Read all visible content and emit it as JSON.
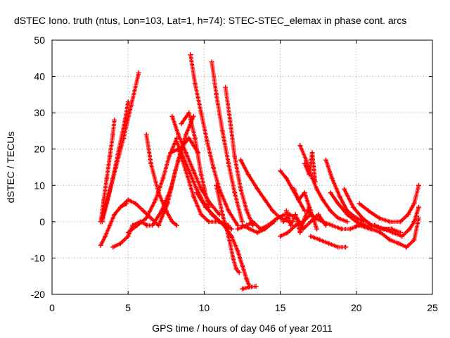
{
  "chart_data": {
    "type": "scatter",
    "title": "dSTEC Iono. truth (ntus, Lon=103, Lat=1, h=74): STEC-STEC_elemax in phase cont. arcs",
    "xlabel": "GPS time / hours of day 046 of year 2011",
    "ylabel": "dSTEC  / TECUs",
    "xlim": [
      0,
      25
    ],
    "ylim": [
      -20,
      50
    ],
    "xticks": [
      0,
      5,
      10,
      15,
      20,
      25
    ],
    "yticks": [
      -20,
      -10,
      0,
      10,
      20,
      30,
      40,
      50
    ],
    "grid": true,
    "marker": "+",
    "color": "#ff0000",
    "series": [
      {
        "x": [
          3.2,
          3.4,
          3.6,
          3.8,
          4.0,
          4.1
        ],
        "y": [
          0,
          6,
          12,
          18,
          24,
          28
        ]
      },
      {
        "x": [
          3.3,
          3.6,
          4.0,
          4.4,
          4.8,
          5.0
        ],
        "y": [
          0,
          5,
          12,
          20,
          28,
          33
        ]
      },
      {
        "x": [
          3.3,
          3.7,
          4.2,
          4.7,
          5.2,
          5.7
        ],
        "y": [
          1,
          7,
          15,
          23,
          32,
          41
        ]
      },
      {
        "x": [
          3.2,
          3.5,
          3.8,
          4.1,
          4.5,
          4.9
        ],
        "y": [
          -6.5,
          -4,
          -1,
          2,
          4,
          5
        ]
      },
      {
        "x": [
          4.0,
          4.5,
          5.0,
          5.3,
          5.8,
          6.3
        ],
        "y": [
          -7,
          -6,
          -4,
          -1,
          0,
          -1
        ]
      },
      {
        "x": [
          4.5,
          5.0,
          5.5,
          6.0,
          6.5,
          7.0
        ],
        "y": [
          4,
          6,
          5,
          3,
          1,
          -1
        ]
      },
      {
        "x": [
          5.0,
          5.6,
          6.2,
          6.8,
          7.3,
          7.7,
          8.2
        ],
        "y": [
          -3,
          -1,
          1,
          6,
          12,
          18,
          23
        ]
      },
      {
        "x": [
          6.2,
          6.6,
          7.2,
          7.8,
          8.3,
          8.8,
          9.3
        ],
        "y": [
          -1,
          -1,
          3,
          9,
          17,
          24,
          29
        ]
      },
      {
        "x": [
          6.2,
          6.5,
          7.0,
          7.5,
          7.9,
          8.2
        ],
        "y": [
          24,
          16,
          8,
          3,
          0,
          -1
        ]
      },
      {
        "x": [
          7.0,
          7.6,
          8.1,
          8.6,
          9.0,
          9.6
        ],
        "y": [
          -1,
          5,
          14,
          21,
          23,
          19
        ]
      },
      {
        "x": [
          7.9,
          8.3,
          8.8,
          9.3,
          9.8,
          10.4,
          11.0
        ],
        "y": [
          29,
          24,
          19,
          14,
          9,
          5,
          2
        ]
      },
      {
        "x": [
          8.2,
          8.6,
          9.0,
          9.5,
          10.0,
          10.5,
          11.0,
          11.8
        ],
        "y": [
          22,
          18,
          14,
          9,
          5,
          2,
          0,
          -2
        ]
      },
      {
        "x": [
          8.5,
          9.0,
          9.4,
          9.8,
          10.3
        ],
        "y": [
          27,
          30,
          23,
          13,
          4
        ]
      },
      {
        "x": [
          7.8,
          8.3,
          8.8,
          9.3,
          9.8,
          10.3,
          11.0,
          11.6
        ],
        "y": [
          19,
          20,
          14,
          7,
          2,
          0,
          0,
          -1
        ]
      },
      {
        "x": [
          9.1,
          9.4,
          9.8,
          10.2,
          10.6,
          11.0,
          11.6,
          12.2
        ],
        "y": [
          46,
          38,
          30,
          22,
          15,
          9,
          3,
          -1
        ]
      },
      {
        "x": [
          10.5,
          10.8,
          11.2,
          11.6,
          12.0,
          12.5
        ],
        "y": [
          44,
          35,
          25,
          16,
          8,
          0
        ]
      },
      {
        "x": [
          11.4,
          11.7,
          12.0,
          12.4,
          12.8,
          13.2
        ],
        "y": [
          37,
          28,
          18,
          9,
          3,
          -1
        ]
      },
      {
        "x": [
          10.8,
          11.2,
          11.6,
          11.9,
          12.1,
          12.3
        ],
        "y": [
          10,
          2,
          -4,
          -10,
          -13,
          -14
        ]
      },
      {
        "x": [
          9.5,
          10.1,
          10.8,
          11.3,
          11.8,
          12.2,
          12.5,
          12.8,
          13.0
        ],
        "y": [
          8,
          4,
          1,
          -1,
          -4,
          -8,
          -12,
          -16,
          -18
        ]
      },
      {
        "x": [
          12.5,
          13.0,
          13.4
        ],
        "y": [
          -18.5,
          -18,
          -17.8
        ]
      },
      {
        "x": [
          12.4,
          12.9,
          13.5,
          14.0,
          14.5,
          15.0,
          15.6
        ],
        "y": [
          17,
          13,
          9,
          6,
          3,
          1,
          0
        ]
      },
      {
        "x": [
          12.5,
          13.0,
          13.5,
          14.0,
          14.6
        ],
        "y": [
          -1,
          -2,
          -3,
          -2,
          0
        ]
      },
      {
        "x": [
          12.2,
          12.8,
          13.2,
          13.7,
          14.2,
          14.8,
          15.3
        ],
        "y": [
          -2,
          -1,
          0,
          -2,
          -1,
          1,
          2
        ]
      },
      {
        "x": [
          15.0,
          15.5,
          16.0,
          16.5,
          17.0
        ],
        "y": [
          -4,
          -3,
          -1,
          0,
          2
        ]
      },
      {
        "x": [
          15.0,
          15.4,
          15.8,
          16.2,
          16.6
        ],
        "y": [
          14,
          12,
          9,
          6,
          3
        ]
      },
      {
        "x": [
          15.4,
          15.7,
          16.0,
          16.3,
          16.6,
          16.9
        ],
        "y": [
          3,
          -1,
          2,
          -3,
          1,
          4
        ]
      },
      {
        "x": [
          15.9,
          16.2,
          16.6,
          17.0,
          17.4
        ],
        "y": [
          9,
          6,
          8,
          3,
          -2
        ]
      },
      {
        "x": [
          16.3,
          16.7,
          17.0,
          17.4,
          17.8,
          18.3,
          18.8,
          19.4
        ],
        "y": [
          21,
          17,
          13,
          9,
          6,
          3,
          1,
          0
        ]
      },
      {
        "x": [
          16.6,
          16.9,
          17.1,
          17.3
        ],
        "y": [
          16,
          13,
          19,
          11
        ]
      },
      {
        "x": [
          17.0,
          17.6,
          18.2,
          18.8,
          19.3
        ],
        "y": [
          -4,
          -5,
          -6,
          -7,
          -7
        ]
      },
      {
        "x": [
          18.0,
          18.4,
          18.9,
          19.4,
          20.0,
          20.5
        ],
        "y": [
          17,
          12,
          7,
          3,
          1,
          0
        ]
      },
      {
        "x": [
          16.8,
          17.3,
          17.8,
          18.4,
          19.0,
          19.6,
          20.2,
          20.9
        ],
        "y": [
          3,
          1,
          0,
          -1,
          -2,
          -2,
          -1,
          -2
        ]
      },
      {
        "x": [
          18.3,
          18.8,
          19.4,
          20.0,
          20.6,
          21.2,
          21.8,
          22.3
        ],
        "y": [
          8,
          5,
          2,
          0,
          -1,
          -1,
          -2,
          -2
        ]
      },
      {
        "x": [
          19.2,
          19.8,
          20.4,
          21.0,
          21.6,
          22.3,
          22.9
        ],
        "y": [
          9,
          4,
          1,
          -1,
          -2,
          -2,
          -3
        ]
      },
      {
        "x": [
          20.0,
          20.5,
          21.0,
          21.6,
          22.2,
          22.8,
          23.3,
          23.8,
          24.1
        ],
        "y": [
          -1,
          -1,
          -2,
          -3,
          -5,
          -6,
          -7,
          -5,
          1
        ]
      },
      {
        "x": [
          20.2,
          20.8,
          21.5,
          22.2,
          22.9,
          23.4,
          23.8,
          24.1
        ],
        "y": [
          5,
          3,
          1,
          0,
          0,
          2,
          5,
          10
        ]
      },
      {
        "x": [
          21.2,
          21.8,
          22.4,
          23.0,
          23.5,
          23.8,
          24.1
        ],
        "y": [
          -1,
          -2,
          -3,
          -4,
          -2,
          0,
          4
        ]
      },
      {
        "x": [
          15.2,
          15.6,
          16.1,
          16.5,
          17.0,
          17.5,
          18.0
        ],
        "y": [
          0,
          2,
          1,
          -2,
          0,
          2,
          -1
        ]
      }
    ]
  }
}
